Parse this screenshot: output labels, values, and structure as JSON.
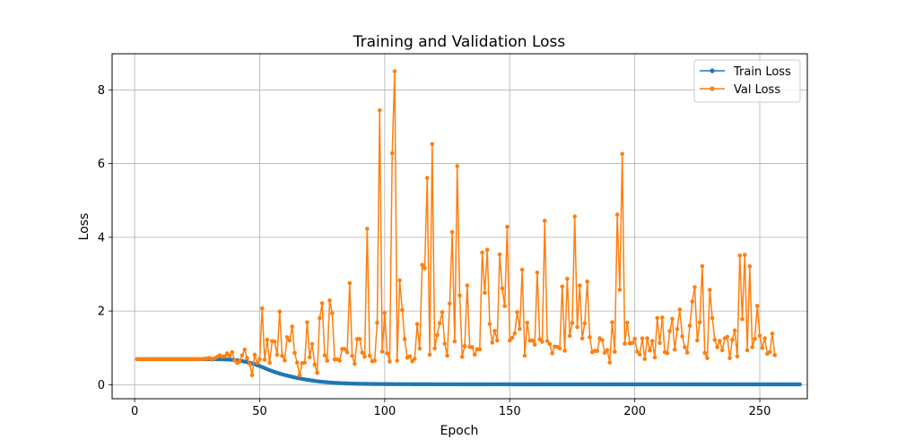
{
  "chart_data": {
    "type": "line",
    "title": "Training and Validation Loss",
    "xlabel": "Epoch",
    "ylabel": "Loss",
    "xlim": [
      -9,
      269
    ],
    "ylim": [
      -0.38,
      8.98
    ],
    "grid": true,
    "legend_position": "top-right",
    "xticks": [
      0,
      50,
      100,
      150,
      200,
      250
    ],
    "yticks": [
      0,
      2,
      4,
      6,
      8
    ],
    "epochs_start": 1,
    "series": [
      {
        "name": "Train Loss",
        "color": "#1f77b4",
        "values": [
          0.6931,
          0.6931,
          0.6931,
          0.6931,
          0.6931,
          0.6931,
          0.6931,
          0.6931,
          0.6931,
          0.6931,
          0.6931,
          0.6931,
          0.6931,
          0.6931,
          0.6931,
          0.6931,
          0.6931,
          0.6931,
          0.6931,
          0.6931,
          0.6931,
          0.6931,
          0.6931,
          0.6931,
          0.6931,
          0.6931,
          0.693,
          0.6929,
          0.6928,
          0.6926,
          0.6923,
          0.6918,
          0.691,
          0.6898,
          0.6883,
          0.6862,
          0.6834,
          0.6797,
          0.6749,
          0.6686,
          0.6608,
          0.6513,
          0.6399,
          0.6265,
          0.6113,
          0.5942,
          0.5752,
          0.5543,
          0.5313,
          0.5064,
          0.4797,
          0.4513,
          0.4225,
          0.3947,
          0.3686,
          0.3446,
          0.3223,
          0.3017,
          0.2822,
          0.264,
          0.2466,
          0.2299,
          0.2138,
          0.1985,
          0.1841,
          0.1705,
          0.1577,
          0.1456,
          0.1341,
          0.1232,
          0.1129,
          0.1033,
          0.0943,
          0.0861,
          0.0786,
          0.0718,
          0.0656,
          0.06,
          0.055,
          0.0505,
          0.0465,
          0.0429,
          0.0397,
          0.0369,
          0.0343,
          0.0321,
          0.0301,
          0.0283,
          0.0267,
          0.0253,
          0.024,
          0.0228,
          0.0218,
          0.0209,
          0.02,
          0.0193,
          0.0186,
          0.018,
          0.0174,
          0.0169,
          0.0164,
          0.016,
          0.0156,
          0.0152,
          0.0149,
          0.0146,
          0.0143,
          0.014,
          0.0138,
          0.0136,
          0.0134,
          0.0132,
          0.013,
          0.0128,
          0.0127,
          0.0125,
          0.0124,
          0.0123,
          0.0122,
          0.012,
          0.0119,
          0.0118,
          0.0118,
          0.0117,
          0.0116,
          0.0115,
          0.0114,
          0.0114,
          0.0113,
          0.0113,
          0.0112,
          0.0112,
          0.0111,
          0.0111,
          0.011,
          0.011,
          0.0109,
          0.0109,
          0.0109,
          0.0108,
          0.0108,
          0.0108,
          0.0107,
          0.0107,
          0.0107,
          0.0107,
          0.0106,
          0.0106,
          0.0106,
          0.0106,
          0.0106,
          0.0105,
          0.0105,
          0.0105,
          0.0105,
          0.0105,
          0.0105,
          0.0104,
          0.0104,
          0.0104,
          0.0104,
          0.0104,
          0.0104,
          0.0104,
          0.0104,
          0.0103,
          0.0103,
          0.0103,
          0.0103,
          0.0103,
          0.0103,
          0.0103,
          0.0103,
          0.0103,
          0.0103,
          0.0103,
          0.0103,
          0.0102,
          0.0102,
          0.0102,
          0.0102,
          0.0102,
          0.0102,
          0.0102,
          0.0102,
          0.0102,
          0.0102,
          0.0102,
          0.0102,
          0.0102,
          0.0102,
          0.0102,
          0.0102,
          0.0102,
          0.0102,
          0.0102,
          0.0102,
          0.0102,
          0.0102,
          0.0102,
          0.0101,
          0.0101,
          0.0101,
          0.0101,
          0.0101,
          0.0101,
          0.0101,
          0.0101,
          0.0101,
          0.0101,
          0.0101,
          0.0101,
          0.0101,
          0.0101,
          0.0101,
          0.0101,
          0.0101,
          0.0101,
          0.0101,
          0.0101,
          0.0101,
          0.0101,
          0.0101,
          0.0101,
          0.0101,
          0.0101,
          0.0101,
          0.0101,
          0.0101,
          0.0101,
          0.0101,
          0.0101,
          0.0101,
          0.0101,
          0.0101,
          0.0101,
          0.0101,
          0.0101,
          0.0101,
          0.0101,
          0.0101,
          0.0101,
          0.0101,
          0.0101,
          0.0101,
          0.0101,
          0.0101,
          0.0101,
          0.0101,
          0.0101,
          0.0101,
          0.0101,
          0.0101,
          0.0101,
          0.0101,
          0.0101,
          0.0101,
          0.0101,
          0.0101,
          0.0101,
          0.0101,
          0.0101,
          0.0101,
          0.0101,
          0.0101,
          0.0101
        ]
      },
      {
        "name": "Val Loss",
        "color": "#ff7f0e",
        "values": [
          0.6931,
          0.6931,
          0.6931,
          0.6931,
          0.6931,
          0.6931,
          0.6931,
          0.6931,
          0.6931,
          0.6931,
          0.6931,
          0.6931,
          0.6931,
          0.6931,
          0.6931,
          0.6931,
          0.6931,
          0.6931,
          0.6931,
          0.6931,
          0.6931,
          0.6931,
          0.6931,
          0.6931,
          0.6931,
          0.6931,
          0.6929,
          0.7029,
          0.7124,
          0.725,
          0.6804,
          0.7168,
          0.7569,
          0.7943,
          0.7663,
          0.7709,
          0.8484,
          0.7862,
          0.8823,
          0.6617,
          0.5939,
          0.6324,
          0.7978,
          0.9496,
          0.7212,
          0.5591,
          0.2593,
          0.815,
          0.5958,
          0.6928,
          2.0742,
          0.6779,
          1.2207,
          0.5959,
          1.1853,
          1.1677,
          0.8125,
          1.9834,
          0.7829,
          0.6567,
          1.2878,
          1.2014,
          1.5781,
          0.8651,
          0.5991,
          0.2589,
          0.5825,
          0.5983,
          1.6917,
          0.7436,
          1.1058,
          0.5465,
          0.3223,
          1.8052,
          2.2106,
          0.7937,
          0.6525,
          2.2869,
          1.9386,
          0.6861,
          0.6884,
          0.6561,
          0.9723,
          0.9677,
          0.8776,
          2.7561,
          0.7849,
          0.5681,
          1.2392,
          1.2407,
          0.8722,
          0.7615,
          4.2331,
          0.7901,
          0.6366,
          0.6519,
          1.6811,
          7.4455,
          0.8992,
          1.9472,
          0.8498,
          0.6287,
          6.2787,
          8.506,
          0.6543,
          2.8321,
          2.0257,
          1.2376,
          0.7308,
          0.7681,
          0.6355,
          0.7031,
          1.6458,
          0.9809,
          3.2507,
          3.1601,
          5.6073,
          0.8153,
          6.5305,
          0.9833,
          1.3485,
          1.6693,
          1.9679,
          1.1139,
          0.7868,
          2.2008,
          4.1425,
          1.1749,
          5.9309,
          2.4209,
          0.7564,
          1.0489,
          2.6915,
          1.0281,
          1.0187,
          0.8178,
          0.9627,
          0.9604,
          3.5864,
          2.4923,
          3.6592,
          1.6503,
          1.1414,
          1.4616,
          1.1992,
          3.5337,
          2.6164,
          2.1324,
          4.2845,
          1.2003,
          1.2735,
          1.3916,
          1.9675,
          1.5135,
          3.1212,
          0.7875,
          1.6794,
          1.1976,
          1.2007,
          1.0859,
          3.0406,
          1.2325,
          1.1665,
          4.4481,
          1.1876,
          1.1055,
          0.8536,
          1.0363,
          1.0246,
          0.9856,
          2.6634,
          0.9251,
          2.8755,
          1.3248,
          1.6742,
          4.5637,
          1.5648,
          2.6953,
          1.2547,
          1.6651,
          2.8001,
          1.2889,
          0.8835,
          0.9185,
          0.912,
          1.2586,
          1.2069,
          0.8689,
          0.9409,
          0.6022,
          1.6937,
          0.8942,
          4.6173,
          2.5746,
          6.2628,
          1.1132,
          1.6828,
          1.1199,
          1.1308,
          1.2461,
          0.8962,
          0.8214,
          1.2556,
          0.6987,
          1.2584,
          0.9286,
          1.1867,
          0.7402,
          1.8111,
          1.1328,
          1.8218,
          0.8839,
          0.856,
          1.4565,
          1.7873,
          0.9546,
          1.5106,
          2.0406,
          1.3129,
          1.0188,
          0.8718,
          1.6008,
          2.2584,
          2.6471,
          1.2025,
          1.6935,
          3.2153,
          0.8623,
          0.7221,
          2.5717,
          1.8086,
          1.2182,
          1.0178,
          1.1891,
          0.9356,
          1.2592,
          1.3007,
          0.7218,
          1.2184,
          1.4717,
          0.7709,
          3.5065,
          1.7808,
          3.5223,
          0.9328,
          3.2127,
          1.0174,
          1.2452,
          2.1385,
          1.3283,
          0.9967,
          1.2589,
          0.8425,
          0.8887,
          1.3889,
          0.8012
        ]
      }
    ]
  }
}
